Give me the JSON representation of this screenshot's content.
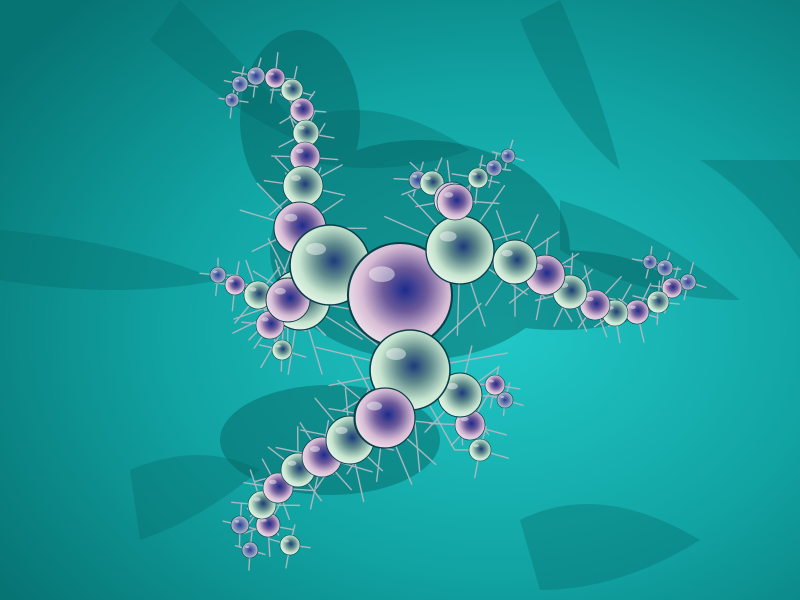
{
  "image": {
    "subject": "fractal-bubble-cluster",
    "colors": {
      "background_center": "#1fc4c4",
      "background_edge": "#087878",
      "shadow": "#056363",
      "bubble_pink": "#d9bfd6",
      "bubble_green": "#c8e6d0",
      "bubble_core_blue": "#1a2a8a",
      "spike": "#9fb0b8"
    }
  }
}
